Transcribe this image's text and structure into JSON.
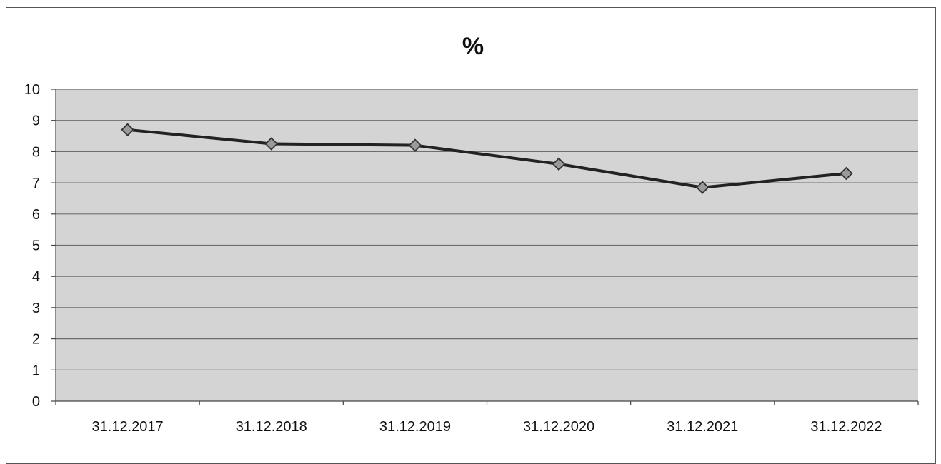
{
  "chart_data": {
    "type": "line",
    "title": "%",
    "xlabel": "",
    "ylabel": "",
    "categories": [
      "31.12.2017",
      "31.12.2018",
      "31.12.2019",
      "31.12.2020",
      "31.12.2021",
      "31.12.2022"
    ],
    "series": [
      {
        "values": [
          8.7,
          8.25,
          8.2,
          7.6,
          6.85,
          7.3
        ]
      }
    ],
    "ylim": [
      0,
      10
    ],
    "yticks": [
      "0",
      "1",
      "2",
      "3",
      "4",
      "5",
      "6",
      "7",
      "8",
      "9",
      "10"
    ],
    "grid": true,
    "legend": "none",
    "colors": {
      "plot_background": "#d4d4d4",
      "gridline": "#6e6e6e",
      "line": "#222222",
      "marker_fill": "#9a9a9a",
      "marker_stroke": "#333333"
    }
  }
}
